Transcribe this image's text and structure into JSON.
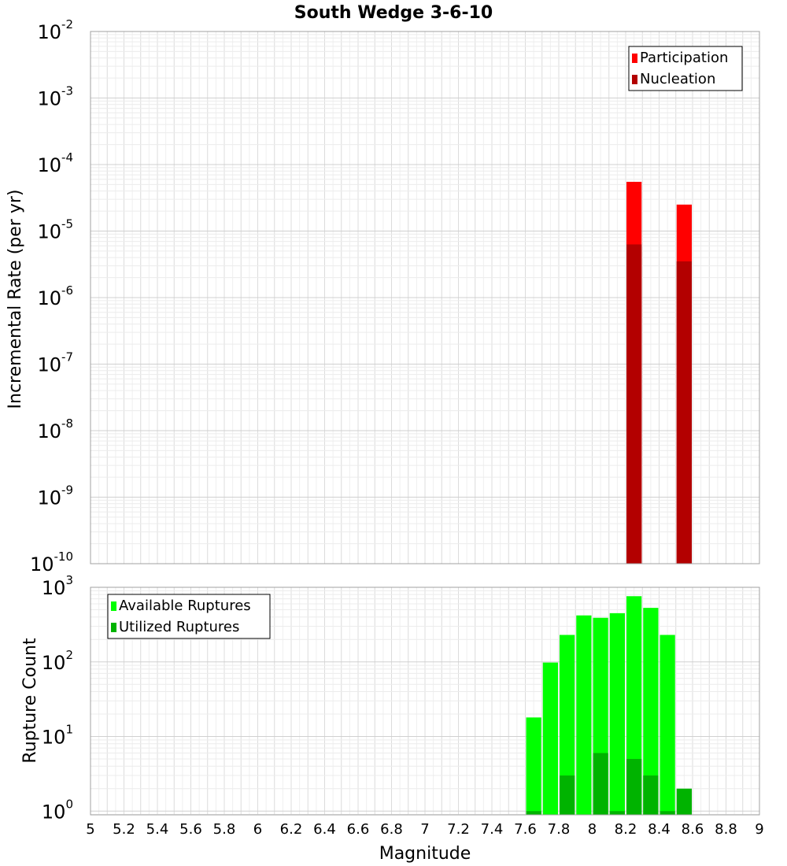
{
  "chart_data": {
    "title": "South Wedge 3-6-10",
    "xlabel": "Magnitude",
    "xlim": [
      5,
      9
    ],
    "xticks": [
      "5",
      "5.2",
      "5.4",
      "5.6",
      "5.8",
      "6",
      "6.2",
      "6.4",
      "6.6",
      "6.8",
      "7",
      "7.2",
      "7.4",
      "7.6",
      "7.8",
      "8",
      "8.2",
      "8.4",
      "8.6",
      "8.8",
      "9"
    ],
    "bin_width": 0.1,
    "panels": [
      {
        "id": "rate",
        "type": "bar",
        "yscale": "log",
        "ylabel": "Incremental Rate (per yr)",
        "ylim_exp": [
          -10,
          -2
        ],
        "yticks": [
          {
            "base": "10",
            "exp": "-2"
          },
          {
            "base": "10",
            "exp": "-3"
          },
          {
            "base": "10",
            "exp": "-4"
          },
          {
            "base": "10",
            "exp": "-5"
          },
          {
            "base": "10",
            "exp": "-6"
          },
          {
            "base": "10",
            "exp": "-7"
          },
          {
            "base": "10",
            "exp": "-8"
          },
          {
            "base": "10",
            "exp": "-9"
          },
          {
            "base": "10",
            "exp": "-10"
          }
        ],
        "legend_position": "top-right",
        "series": [
          {
            "name": "Participation",
            "color": "#ff0000",
            "points": [
              {
                "x": 8.25,
                "y": 5.5e-05
              },
              {
                "x": 8.55,
                "y": 2.5e-05
              }
            ]
          },
          {
            "name": "Nucleation",
            "color": "#b30000",
            "points": [
              {
                "x": 8.25,
                "y": 6.3e-06
              },
              {
                "x": 8.55,
                "y": 3.5e-06
              }
            ]
          }
        ]
      },
      {
        "id": "count",
        "type": "bar",
        "yscale": "log",
        "ylabel": "Rupture Count",
        "ylim_exp": [
          -0.05,
          3
        ],
        "yticks": [
          {
            "base": "10",
            "exp": "3"
          },
          {
            "base": "10",
            "exp": "2"
          },
          {
            "base": "10",
            "exp": "1"
          },
          {
            "base": "10",
            "exp": "0"
          }
        ],
        "legend_position": "top-left",
        "series": [
          {
            "name": "Available Ruptures",
            "color": "#00ff00",
            "points": [
              {
                "x": 7.65,
                "y": 18
              },
              {
                "x": 7.75,
                "y": 98
              },
              {
                "x": 7.85,
                "y": 230
              },
              {
                "x": 7.95,
                "y": 420
              },
              {
                "x": 8.05,
                "y": 390
              },
              {
                "x": 8.15,
                "y": 450
              },
              {
                "x": 8.25,
                "y": 760
              },
              {
                "x": 8.35,
                "y": 530
              },
              {
                "x": 8.45,
                "y": 230
              }
            ]
          },
          {
            "name": "Utilized Ruptures",
            "color": "#00b300",
            "points": [
              {
                "x": 7.65,
                "y": 1
              },
              {
                "x": 7.85,
                "y": 3
              },
              {
                "x": 8.05,
                "y": 6
              },
              {
                "x": 8.15,
                "y": 1
              },
              {
                "x": 8.25,
                "y": 5
              },
              {
                "x": 8.35,
                "y": 3
              },
              {
                "x": 8.45,
                "y": 1
              },
              {
                "x": 8.55,
                "y": 2
              }
            ]
          }
        ]
      }
    ]
  }
}
